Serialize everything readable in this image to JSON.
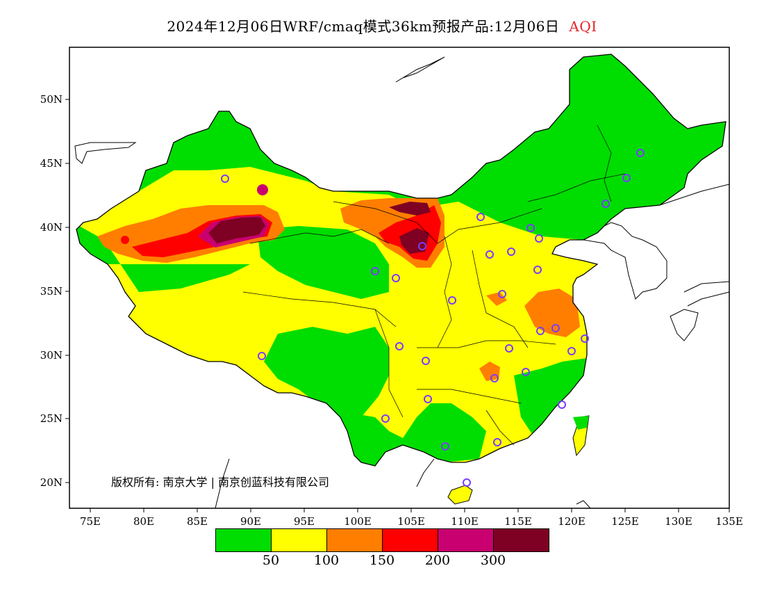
{
  "title": {
    "text": "2024年12月06日WRF/cmaq模式36km预报产品:12月06日",
    "variable": "AQI",
    "variable_color": "#e3242b"
  },
  "axes": {
    "lon_range": [
      73,
      135
    ],
    "lat_range": [
      18,
      53.5
    ],
    "lon_ticks": [
      "75E",
      "80E",
      "85E",
      "90E",
      "95E",
      "100E",
      "105E",
      "110E",
      "115E",
      "120E",
      "125E",
      "130E",
      "135E"
    ],
    "lat_ticks": [
      "20N",
      "25N",
      "30N",
      "35N",
      "40N",
      "45N",
      "50N"
    ]
  },
  "legend": {
    "colors": [
      "#00dd00",
      "#ffff00",
      "#ff7e00",
      "#ff0000",
      "#c9006f",
      "#7e0023"
    ],
    "labels": [
      "50",
      "100",
      "150",
      "200",
      "300"
    ]
  },
  "copyright": "版权所有: 南京大学 | 南京创蓝科技有限公司"
}
